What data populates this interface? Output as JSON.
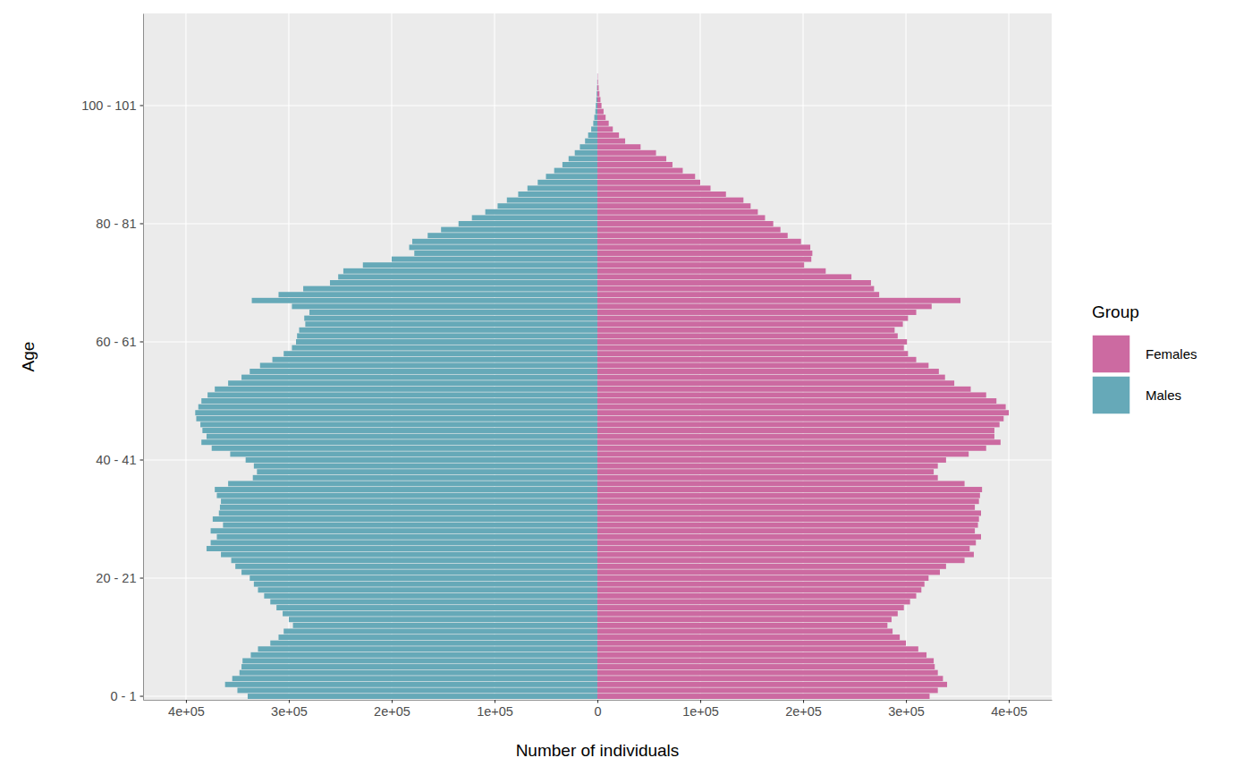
{
  "chart_data": {
    "type": "bar",
    "orientation": "horizontal",
    "x_label": "Number of individuals",
    "y_label": "Age",
    "legend_title": "Group",
    "legend": "right",
    "grid": true,
    "xlim": [
      -441700,
      441700
    ],
    "xticks": [
      {
        "value": -400000,
        "label": "4e+05"
      },
      {
        "value": -300000,
        "label": "3e+05"
      },
      {
        "value": -200000,
        "label": "2e+05"
      },
      {
        "value": -100000,
        "label": "1e+05"
      },
      0,
      {
        "value": 100000,
        "label": "1e+05"
      },
      {
        "value": 200000,
        "label": "2e+05"
      },
      {
        "value": 300000,
        "label": "3e+05"
      },
      {
        "value": 400000,
        "label": "4e+05"
      }
    ],
    "categories": [
      "0 - 1",
      null,
      null,
      null,
      null,
      null,
      null,
      null,
      null,
      null,
      null,
      null,
      null,
      null,
      null,
      null,
      null,
      null,
      null,
      null,
      "20 - 21",
      null,
      null,
      null,
      null,
      null,
      null,
      null,
      null,
      null,
      null,
      null,
      null,
      null,
      null,
      null,
      null,
      null,
      null,
      null,
      "40 - 41",
      null,
      null,
      null,
      null,
      null,
      null,
      null,
      null,
      null,
      null,
      null,
      null,
      null,
      null,
      null,
      null,
      null,
      null,
      null,
      "60 - 61",
      null,
      null,
      null,
      null,
      null,
      null,
      null,
      null,
      null,
      null,
      null,
      null,
      null,
      null,
      null,
      null,
      null,
      null,
      null,
      "80 - 81",
      null,
      null,
      null,
      null,
      null,
      null,
      null,
      null,
      null,
      null,
      null,
      null,
      null,
      null,
      null,
      null,
      null,
      null,
      null,
      "100 - 101",
      null,
      null,
      null,
      null,
      null,
      null,
      null,
      null,
      null,
      null,
      null,
      null,
      null,
      null,
      null
    ],
    "series": [
      {
        "name": "Females",
        "color": "#CC6AA1",
        "values": [
          323000,
          331000,
          340000,
          336000,
          331000,
          328000,
          327000,
          320000,
          312000,
          300000,
          294000,
          287000,
          282000,
          286000,
          292000,
          298000,
          304000,
          310000,
          315000,
          318000,
          322000,
          333000,
          339000,
          357000,
          366000,
          362000,
          368000,
          373000,
          367000,
          370000,
          371000,
          373000,
          367000,
          371000,
          372000,
          374000,
          357000,
          331000,
          327000,
          331000,
          339000,
          361000,
          378000,
          392000,
          386000,
          386000,
          391000,
          395000,
          400000,
          397000,
          388000,
          378000,
          363000,
          347000,
          338000,
          332000,
          322000,
          310000,
          302000,
          298000,
          301000,
          292000,
          289000,
          297000,
          302000,
          310000,
          325000,
          353000,
          274000,
          269000,
          266000,
          247000,
          222000,
          201000,
          208000,
          209000,
          207000,
          198000,
          185000,
          178000,
          171000,
          163000,
          156000,
          149000,
          142000,
          125000,
          110000,
          100000,
          95000,
          83000,
          73000,
          67000,
          57000,
          42000,
          27000,
          21000,
          15000,
          11000,
          8000,
          6000,
          4000,
          3000,
          2000,
          1200,
          600,
          300,
          0,
          0,
          0,
          0,
          0,
          0,
          0,
          0,
          0,
          0
        ]
      },
      {
        "name": "Males",
        "color": "#66A9B8",
        "values": [
          -340000,
          -350000,
          -362000,
          -355000,
          -348000,
          -346000,
          -345000,
          -337000,
          -330000,
          -318000,
          -310000,
          -305000,
          -296000,
          -300000,
          -306000,
          -312000,
          -318000,
          -324000,
          -330000,
          -334000,
          -338000,
          -346000,
          -352000,
          -356000,
          -366000,
          -380000,
          -376000,
          -370000,
          -376000,
          -364000,
          -374000,
          -368000,
          -367000,
          -366000,
          -370000,
          -372000,
          -359000,
          -335000,
          -331000,
          -334000,
          -342000,
          -357000,
          -375000,
          -385000,
          -380000,
          -384000,
          -386000,
          -390000,
          -391000,
          -388000,
          -385000,
          -379000,
          -372000,
          -359000,
          -346000,
          -338000,
          -328000,
          -316000,
          -305000,
          -297000,
          -293000,
          -292000,
          -290000,
          -284000,
          -285000,
          -280000,
          -297000,
          -336000,
          -310000,
          -286000,
          -260000,
          -252000,
          -247000,
          -228000,
          -200000,
          -178000,
          -183000,
          -180000,
          -165000,
          -152000,
          -135000,
          -122000,
          -109000,
          -97000,
          -88000,
          -77000,
          -68000,
          -58000,
          -50000,
          -42000,
          -34000,
          -28000,
          -22000,
          -17000,
          -12000,
          -9000,
          -6000,
          -4000,
          -3000,
          -2000,
          -1500,
          -1000,
          -700,
          -400,
          -200,
          -100,
          0,
          0,
          0,
          0,
          0,
          0,
          0,
          0,
          0,
          0
        ]
      }
    ]
  }
}
